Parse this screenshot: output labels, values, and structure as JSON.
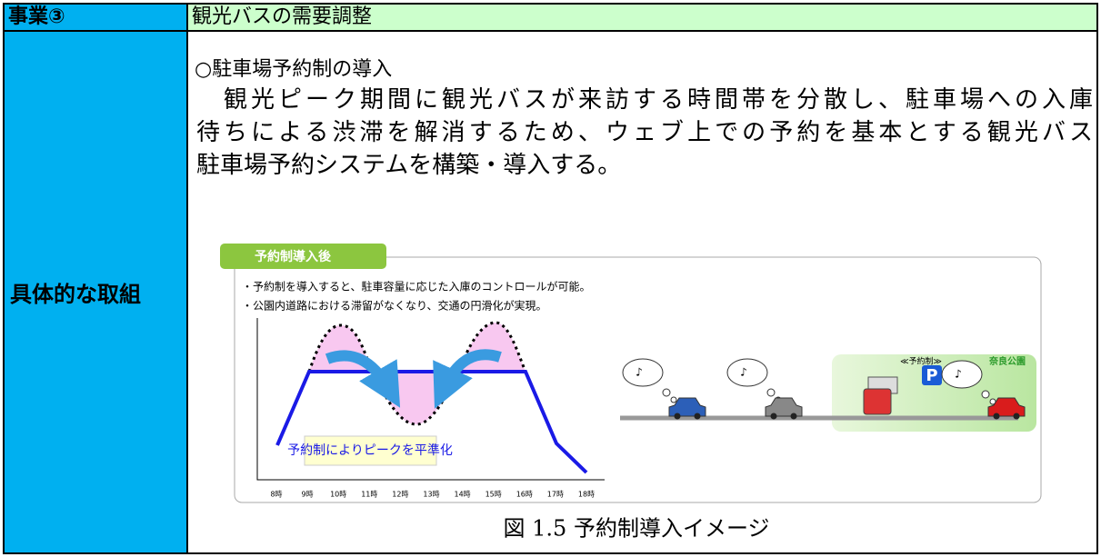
{
  "table": {
    "header": [
      "事業③",
      "観光バスの需要調整"
    ],
    "row_label": "具体的な取組"
  },
  "content": {
    "heading": "○駐車場予約制の導入",
    "paragraph": [
      "　観光ピーク期間に観光バスが来訪する時間帯を分散し、駐車場への入庫",
      "待ちによる渋滞を解消するため、ウェブ上での予約を基本とする観光バス",
      "駐車場予約システムを構築・導入する。"
    ]
  },
  "figure": {
    "tag": "予約制導入後",
    "notes": [
      "・予約制を導入すると、駐車容量に応じた入庫のコントロールが可能。",
      "・公園内道路における滞留がなくなり、交通の円滑化が実現。"
    ],
    "hours": [
      "8時",
      "9時",
      "10時",
      "11時",
      "12時",
      "13時",
      "14時",
      "15時",
      "16時",
      "17時",
      "18時"
    ],
    "chart_label": "予約制によりピークを平準化",
    "bubbles": [
      "♪",
      "♪",
      "♪"
    ],
    "reserve_label": "≪予約制≫",
    "park_label": "奈良公園",
    "parking_sign": "P",
    "caption": "図 1.5 予約制導入イメージ"
  }
}
